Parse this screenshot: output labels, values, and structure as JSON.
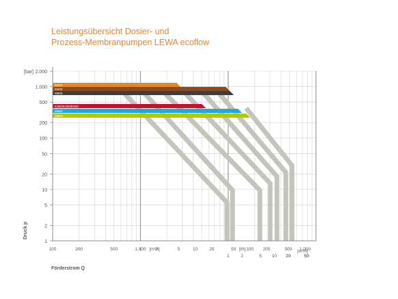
{
  "title": {
    "line1": "Leistungsübersicht Dosier- und",
    "line2": "Prozess-Membranpumpen LEWA ecoflow"
  },
  "colors": {
    "title": "#e8842a",
    "curves": "#c3c4bc",
    "grid": "#c9c9c9",
    "axis": "#888888",
    "text": "#555555"
  },
  "chart_data": {
    "type": "area",
    "title": "Leistungsübersicht Dosier- und Prozess-Membranpumpen LEWA ecoflow",
    "xlabel": "Förderstrom Q",
    "ylabel": "Druck p",
    "y_unit": "[bar]",
    "y_scale": "log",
    "ylim": [
      1,
      2000
    ],
    "y_ticks": [
      1,
      2,
      5,
      10,
      20,
      50,
      100,
      200,
      500,
      1000,
      2000
    ],
    "y_tick_labels": [
      "1",
      "2",
      "5",
      "10",
      "20",
      "50",
      "100",
      "200",
      "500",
      "1.000",
      "2.000"
    ],
    "x_scale": "log",
    "x_unit_primary": "l/h",
    "xlim": [
      0.1,
      100
    ],
    "x_axes": [
      {
        "unit": "[m³/h]",
        "ticks": [
          0.1,
          0.2,
          0.5,
          1
        ],
        "labels": [
          "100",
          "200",
          "500",
          "1.000"
        ]
      },
      {
        "unit": "[m³/h]",
        "ticks": [
          1,
          2,
          5,
          10,
          20,
          50,
          100,
          200,
          500,
          1000
        ],
        "labels": [
          "1",
          "2",
          "5",
          "10",
          "20",
          "50",
          "100",
          "200",
          "500",
          "1.000"
        ]
      },
      {
        "unit": "[l/h]",
        "ticks": [
          1000,
          2000,
          5000,
          10000,
          20000,
          50000
        ],
        "labels": [
          "1",
          "2",
          "5",
          "10",
          "20",
          "50"
        ]
      },
      {
        "unit": "[m³/h]",
        "ticks": [
          20000,
          50000
        ],
        "labels": [
          "20",
          "50"
        ]
      }
    ],
    "grid": true,
    "series": [
      {
        "name": "M200",
        "color": "#e8842a",
        "p_max": 2000,
        "q_at_pmax": 60
      },
      {
        "name": "M400",
        "color": "#8a4a22",
        "p_max": 1200,
        "q_at_pmax": 700
      },
      {
        "name": "M800",
        "color": "#3e3e3e",
        "p_max": 1000,
        "q_at_pmax": 700
      },
      {
        "name": "K300/K200/K500",
        "color": "#c8102e",
        "p_max": 500,
        "q_at_pmax": 300
      },
      {
        "name": "M900",
        "color": "#1eaadc",
        "p_max": 400,
        "q_at_pmax": 1500
      },
      {
        "name": "M500",
        "color": "#b2c900",
        "p_max": 300,
        "q_at_pmax": 2000
      }
    ],
    "diagonal_curves": [
      {
        "p_top": 2000,
        "q_top": 60,
        "p_end": 5,
        "q_end": 800
      },
      {
        "p_top": 1500,
        "q_top": 100,
        "p_end": 10,
        "q_end": 1000
      },
      {
        "p_top": 1000,
        "q_top": 200,
        "p_end": 10,
        "q_end": 5000
      },
      {
        "p_top": 1000,
        "q_top": 400,
        "p_end": 20,
        "q_end": 8000
      },
      {
        "p_top": 1000,
        "q_top": 700,
        "p_end": 20,
        "q_end": 10000
      },
      {
        "p_top": 500,
        "q_top": 700,
        "p_end": 20,
        "q_end": 15000
      },
      {
        "p_top": 300,
        "q_top": 2000,
        "p_end": 30,
        "q_end": 20000
      }
    ]
  }
}
